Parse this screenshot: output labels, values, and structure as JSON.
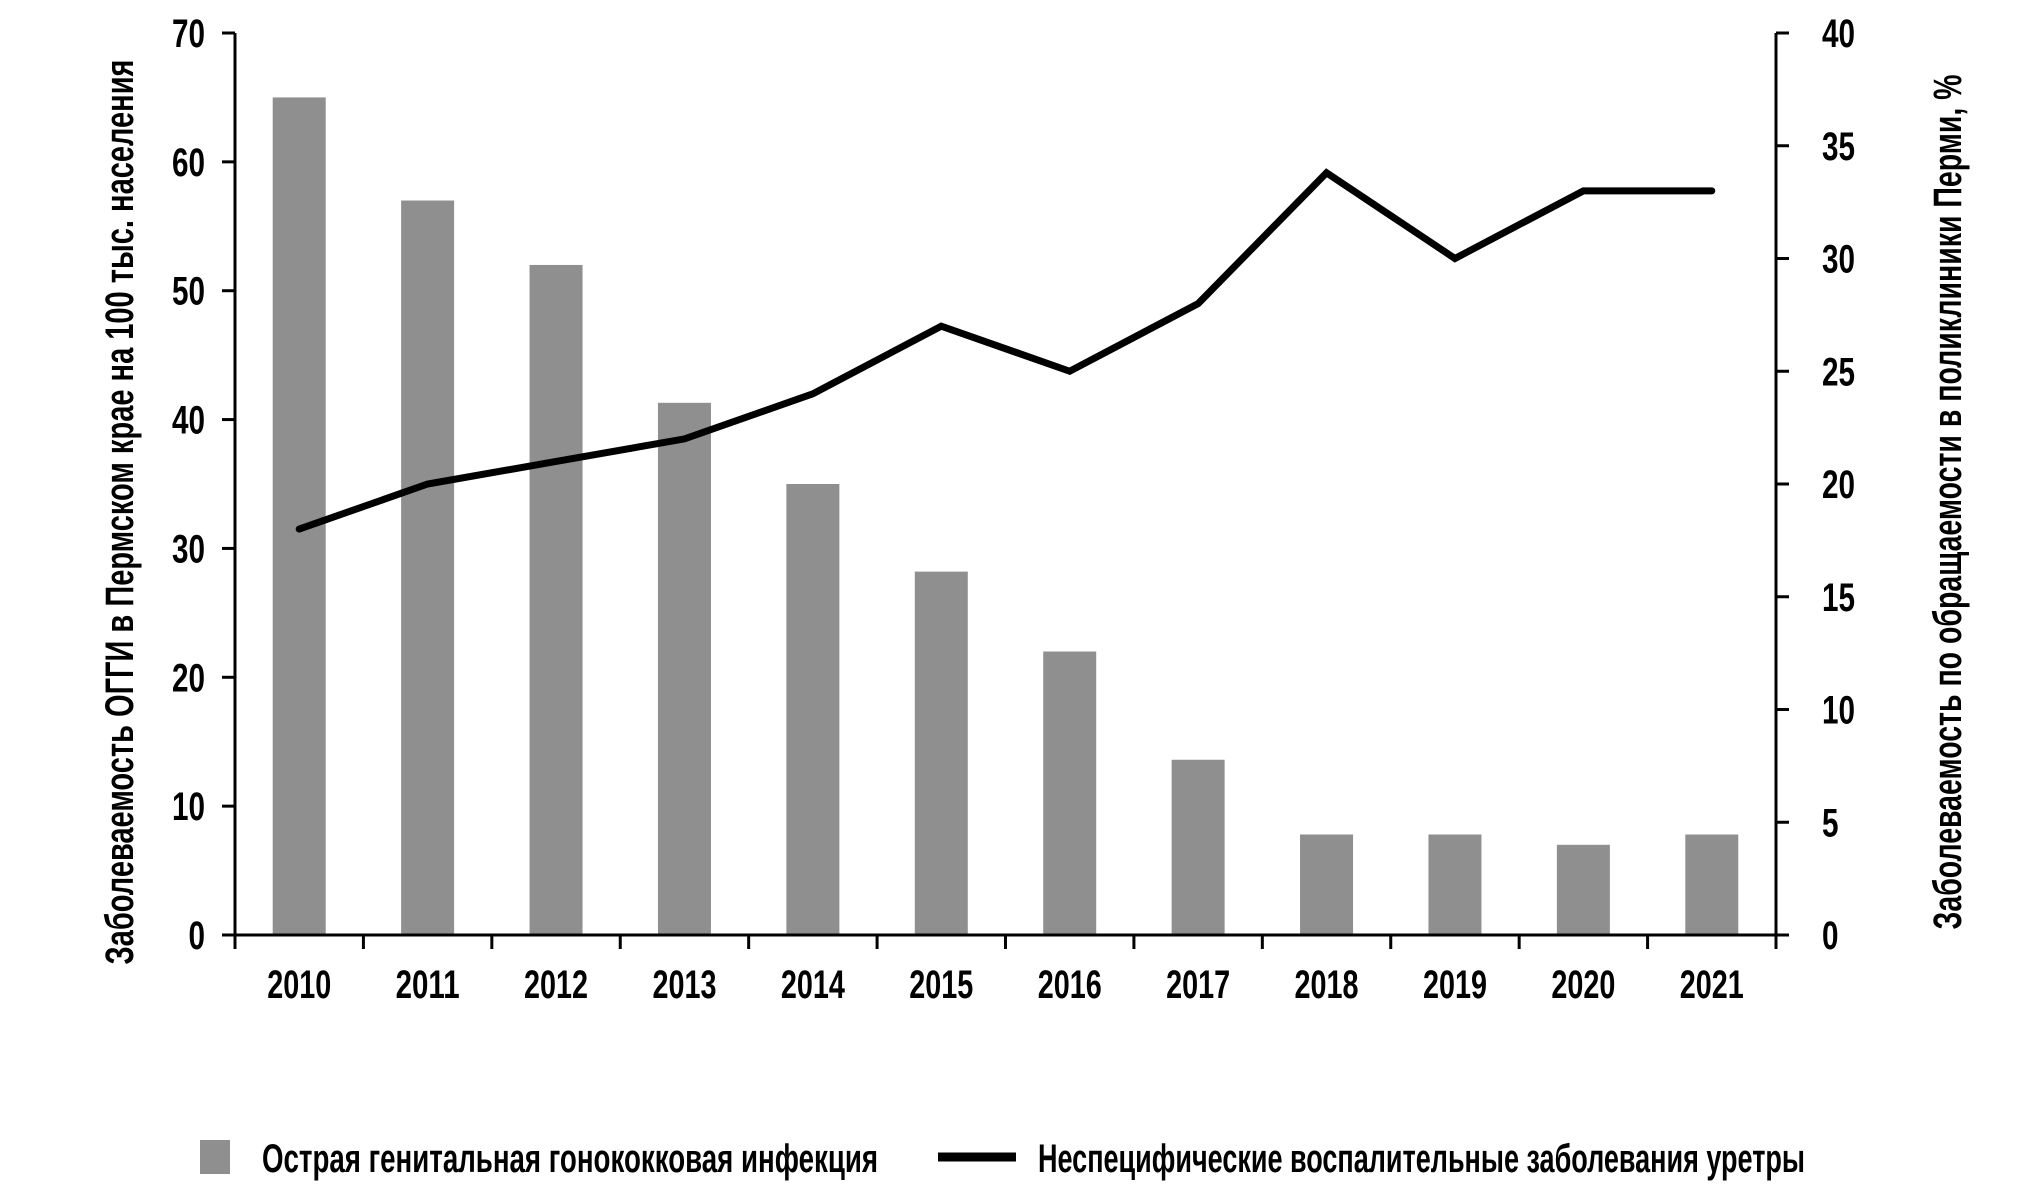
{
  "chart_data": {
    "type": "combo-bar-line",
    "categories": [
      "2010",
      "2011",
      "2012",
      "2013",
      "2014",
      "2015",
      "2016",
      "2017",
      "2018",
      "2019",
      "2020",
      "2021"
    ],
    "series": [
      {
        "name": "Острая генитальная гонококковая инфекция",
        "type": "bar",
        "axis": "left",
        "color": "#8F8F8F",
        "values": [
          65,
          57,
          52,
          41.3,
          35,
          28.2,
          22,
          13.6,
          7.8,
          7.8,
          7,
          7.8
        ]
      },
      {
        "name": "Неспецифические воспалительные заболевания уретры",
        "type": "line",
        "axis": "right",
        "color": "#000000",
        "values": [
          18,
          20,
          21,
          22,
          24,
          27,
          25,
          28,
          33.8,
          30,
          33,
          33
        ]
      }
    ],
    "left_axis": {
      "label": "Заболеваемость ОГГИ в Пермском крае на 100 тыс. населения",
      "min": 0,
      "max": 70,
      "ticks": [
        0,
        10,
        20,
        30,
        40,
        50,
        60,
        70
      ]
    },
    "right_axis": {
      "label": "Заболеваемость по обращаемости в поликлиники Перми, %",
      "min": 0,
      "max": 40,
      "ticks": [
        0,
        5,
        10,
        15,
        20,
        25,
        30,
        35,
        40
      ]
    },
    "x_axis": {
      "ticks_between_categories": true
    },
    "legend_position": "bottom",
    "grid": false
  }
}
